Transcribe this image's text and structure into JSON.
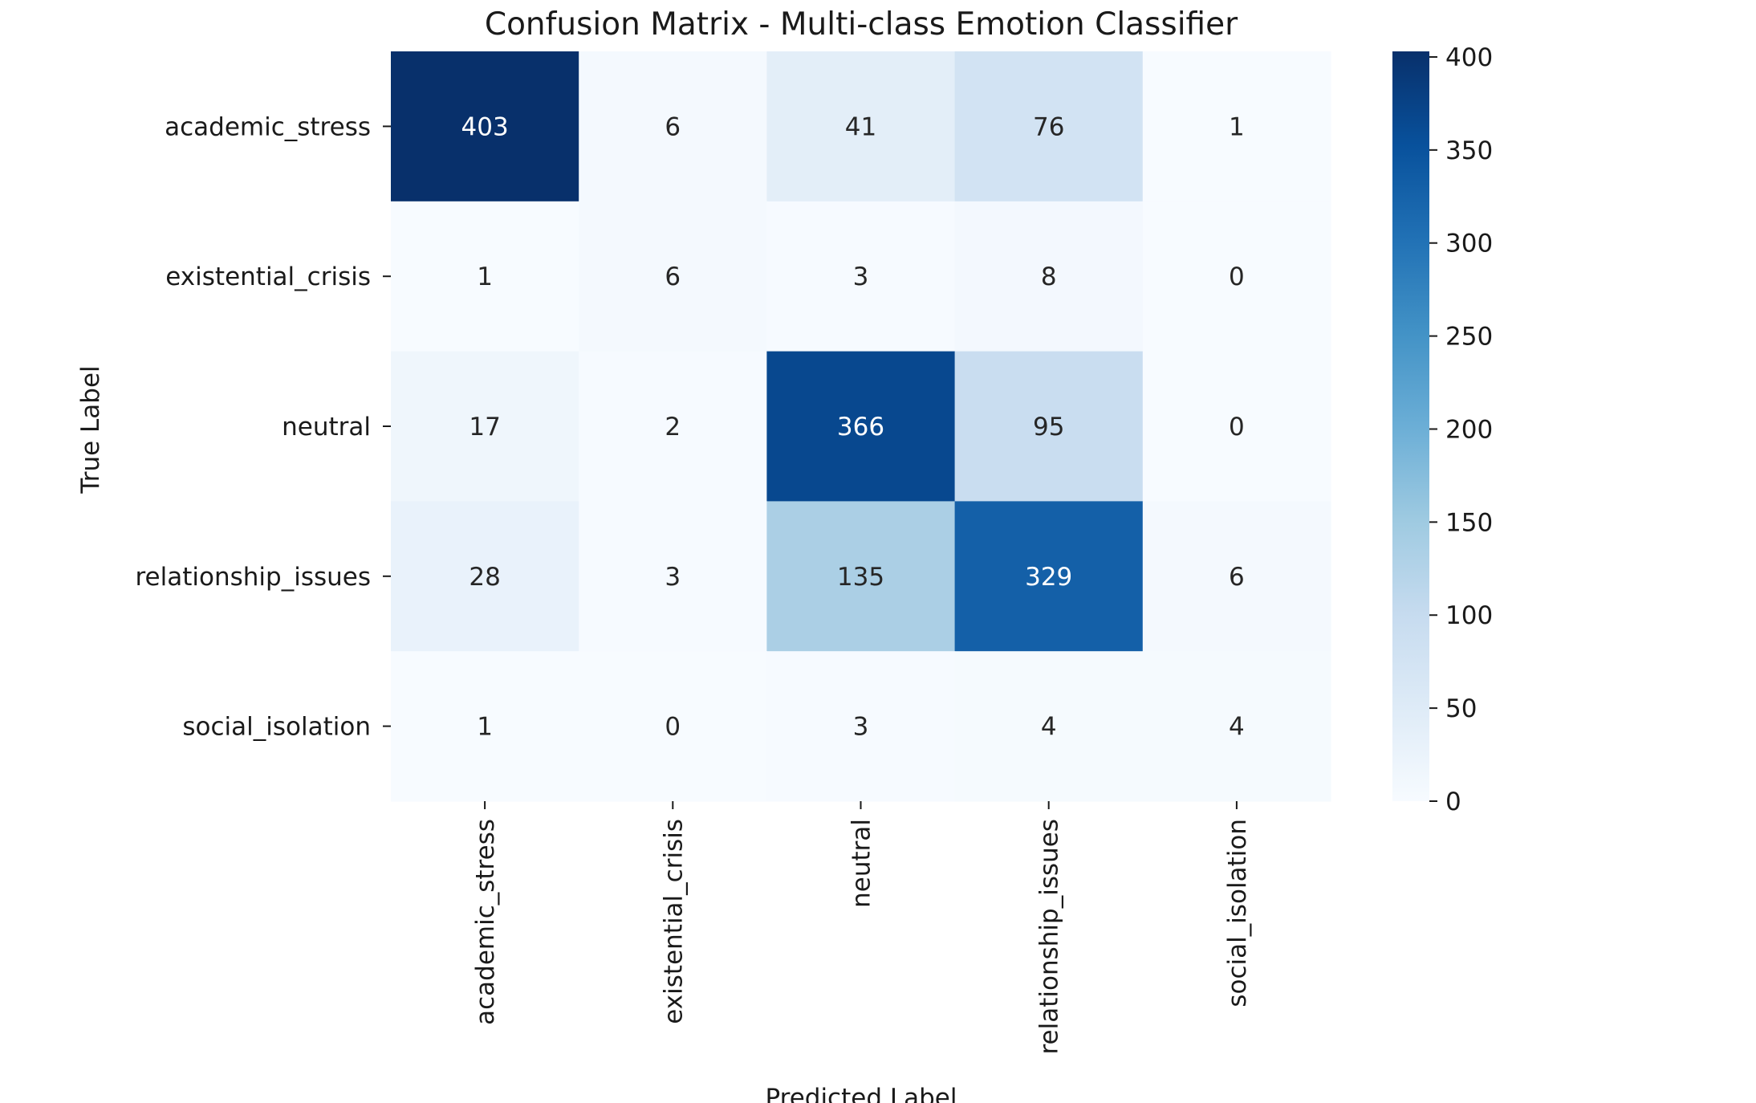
{
  "chart_data": {
    "type": "heatmap",
    "title": "Confusion Matrix - Multi-class Emotion Classifier",
    "xlabel": "Predicted Label",
    "ylabel": "True Label",
    "x_categories": [
      "academic_stress",
      "existential_crisis",
      "neutral",
      "relationship_issues",
      "social_isolation"
    ],
    "y_categories": [
      "academic_stress",
      "existential_crisis",
      "neutral",
      "relationship_issues",
      "social_isolation"
    ],
    "values": [
      [
        403,
        6,
        41,
        76,
        1
      ],
      [
        1,
        6,
        3,
        8,
        0
      ],
      [
        17,
        2,
        366,
        95,
        0
      ],
      [
        28,
        3,
        135,
        329,
        6
      ],
      [
        1,
        0,
        3,
        4,
        4
      ]
    ],
    "colormap": "Blues",
    "colorbar": {
      "vmin": 0,
      "vmax": 403,
      "ticks": [
        0,
        50,
        100,
        150,
        200,
        250,
        300,
        350,
        400
      ]
    }
  }
}
